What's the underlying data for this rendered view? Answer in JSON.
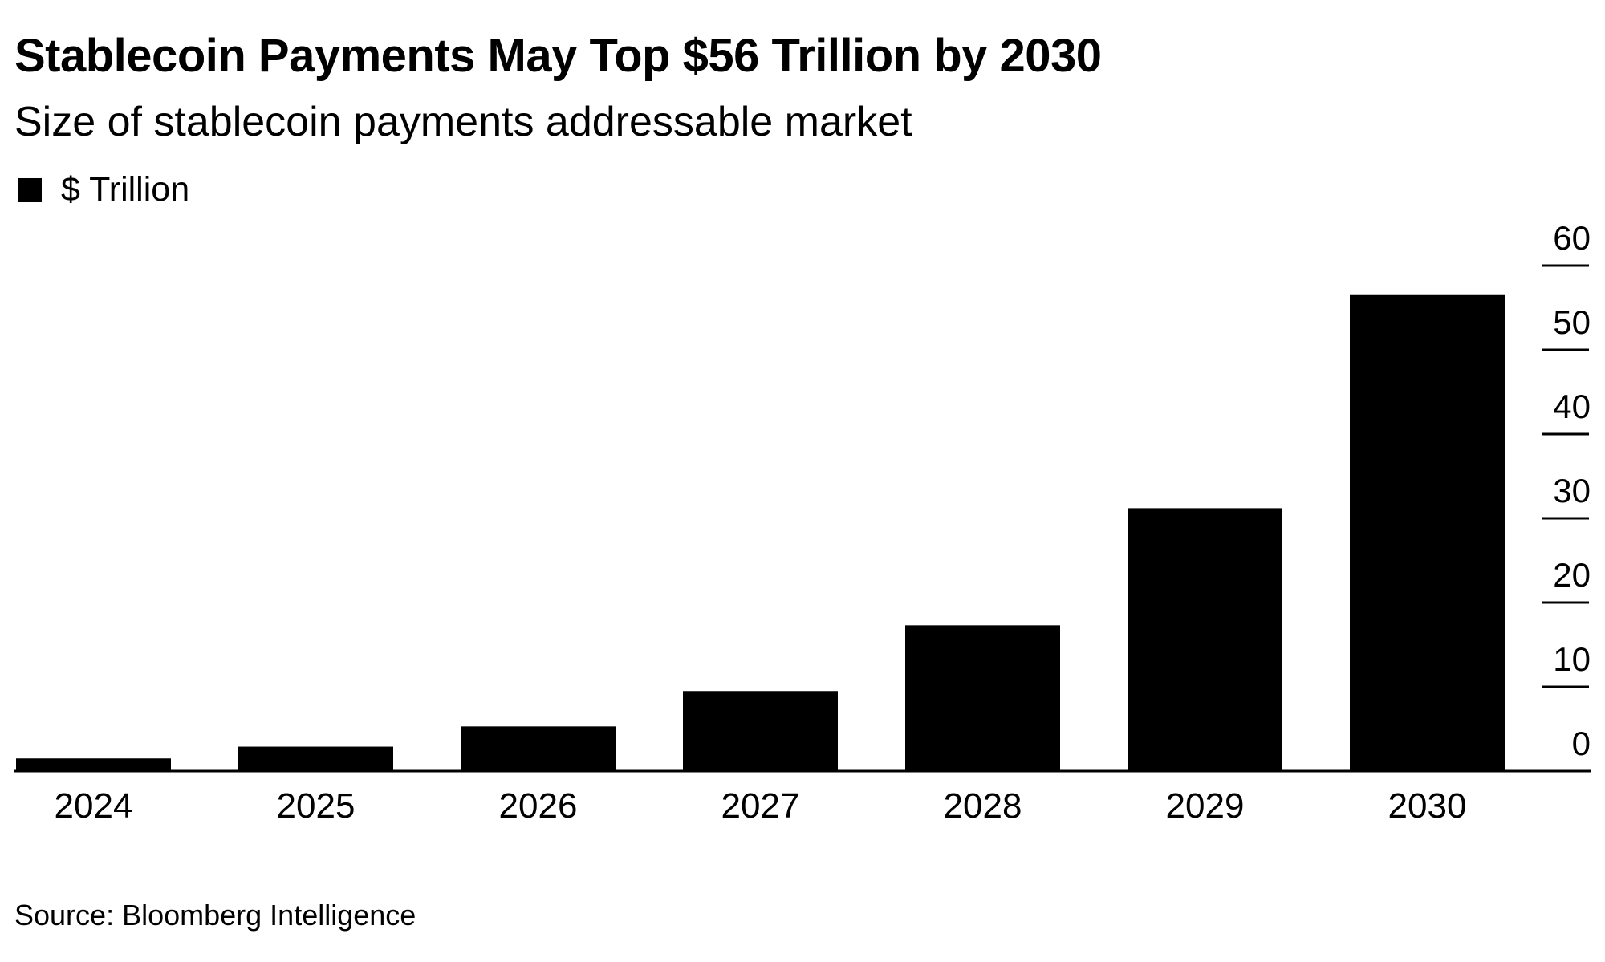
{
  "chart_data": {
    "type": "bar",
    "title": "Stablecoin Payments May Top $56 Trillion by 2030",
    "subtitle": "Size of stablecoin payments addressable market",
    "legend": [
      {
        "name": "$ Trillion",
        "color": "#000000"
      }
    ],
    "categories": [
      "2024",
      "2025",
      "2026",
      "2027",
      "2028",
      "2029",
      "2030"
    ],
    "series": [
      {
        "name": "$ Trillion",
        "values": [
          1.5,
          2.9,
          5.3,
          9.5,
          17.3,
          31.2,
          56.5
        ]
      }
    ],
    "ylim": [
      0,
      60
    ],
    "yticks": [
      0,
      10,
      20,
      30,
      40,
      50,
      60
    ],
    "y_axis_side": "right",
    "grid": false,
    "legend_position": "top-left",
    "bar_color": "#000000",
    "source": "Source: Bloomberg Intelligence"
  }
}
